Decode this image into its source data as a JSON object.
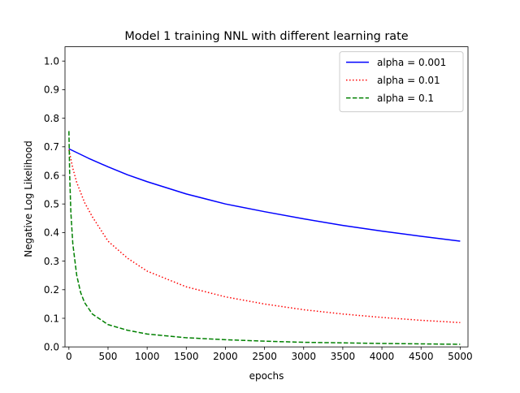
{
  "chart_data": {
    "type": "line",
    "title": "Model 1 training NNL with different learning rate",
    "xlabel": "epochs",
    "ylabel": "Negative Log Likelihood",
    "xlim": [
      -50,
      5100
    ],
    "ylim": [
      0.0,
      1.05
    ],
    "xticks": [
      0,
      500,
      1000,
      1500,
      2000,
      2500,
      3000,
      3500,
      4000,
      4500,
      5000
    ],
    "yticks": [
      0.0,
      0.1,
      0.2,
      0.3,
      0.4,
      0.5,
      0.6,
      0.7,
      0.8,
      0.9,
      1.0
    ],
    "xtick_labels": [
      "0",
      "500",
      "1000",
      "1500",
      "2000",
      "2500",
      "3000",
      "3500",
      "4000",
      "4500",
      "5000"
    ],
    "ytick_labels": [
      "0.0",
      "0.1",
      "0.2",
      "0.3",
      "0.4",
      "0.5",
      "0.6",
      "0.7",
      "0.8",
      "0.9",
      "1.0"
    ],
    "grid": false,
    "legend_position": "top-right",
    "series": [
      {
        "name": "alpha = 0.001",
        "color": "#0000ff",
        "style": "solid",
        "x": [
          0,
          250,
          500,
          750,
          1000,
          1500,
          2000,
          2500,
          3000,
          3500,
          4000,
          4500,
          5000
        ],
        "y": [
          0.693,
          0.66,
          0.63,
          0.602,
          0.578,
          0.535,
          0.5,
          0.473,
          0.448,
          0.425,
          0.405,
          0.387,
          0.37
        ]
      },
      {
        "name": "alpha = 0.01",
        "color": "#ff0000",
        "style": "dotted",
        "x": [
          0,
          50,
          100,
          200,
          300,
          500,
          750,
          1000,
          1500,
          2000,
          2500,
          3000,
          3500,
          4000,
          4500,
          5000
        ],
        "y": [
          0.69,
          0.625,
          0.575,
          0.505,
          0.455,
          0.37,
          0.31,
          0.265,
          0.21,
          0.175,
          0.15,
          0.13,
          0.115,
          0.103,
          0.093,
          0.085
        ]
      },
      {
        "name": "alpha = 0.1",
        "color": "#008000",
        "style": "dashed",
        "x": [
          0,
          10,
          25,
          50,
          100,
          150,
          200,
          300,
          500,
          750,
          1000,
          1500,
          2000,
          2500,
          3000,
          4000,
          5000
        ],
        "y": [
          0.755,
          0.6,
          0.47,
          0.36,
          0.25,
          0.19,
          0.155,
          0.115,
          0.078,
          0.058,
          0.045,
          0.032,
          0.025,
          0.02,
          0.016,
          0.012,
          0.009
        ]
      }
    ]
  }
}
